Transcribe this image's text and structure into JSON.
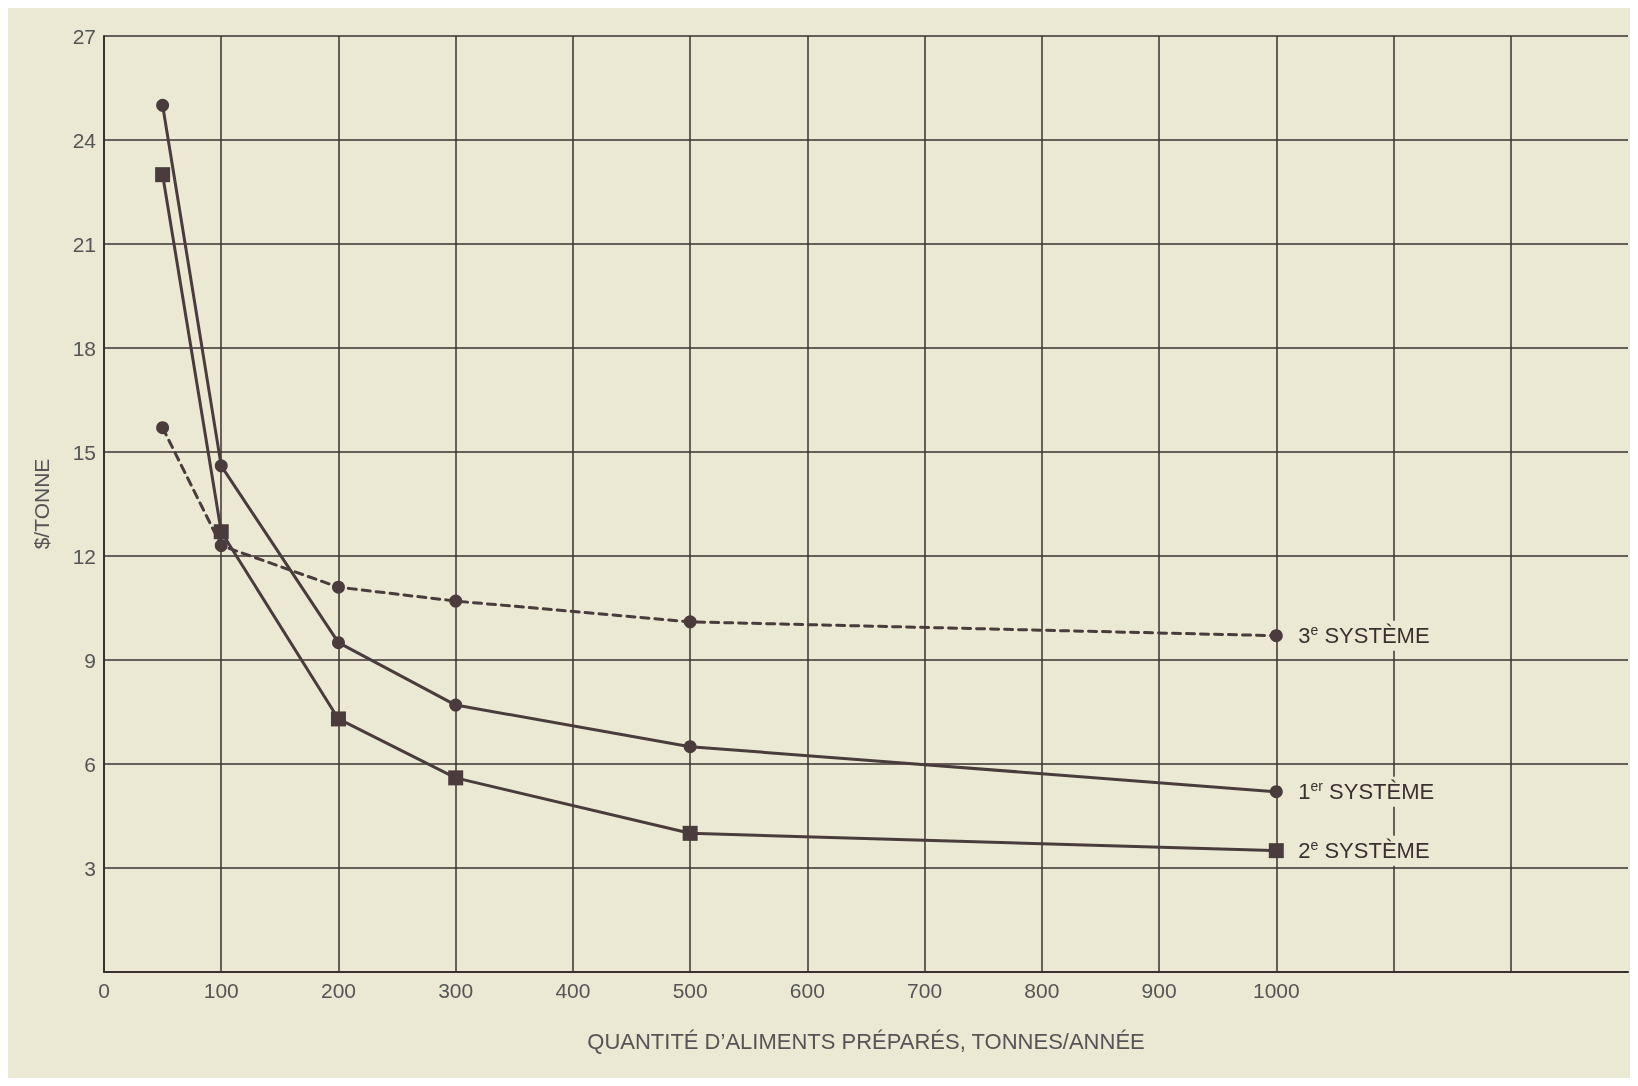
{
  "chart_data": {
    "type": "line",
    "xlabel": "QUANTITÉ D’ALIMENTS PRÉPARÉS, TONNES/ANNÉE",
    "ylabel": "$/TONNE",
    "xlim": [
      0,
      1300
    ],
    "xticks": [
      0,
      100,
      200,
      300,
      400,
      500,
      600,
      700,
      800,
      900,
      1000,
      {
        "value": 1100,
        "label": null
      },
      {
        "value": 1200,
        "label": null
      }
    ],
    "ylim": [
      0,
      27
    ],
    "yticks": [
      {
        "value": 0,
        "label": null
      },
      3,
      6,
      9,
      12,
      15,
      18,
      21,
      24,
      27
    ],
    "grid": true,
    "series": [
      {
        "name": "1$^{er}$ SYSTÈME",
        "color": "#4a3c3c",
        "marker": "circle",
        "line_style": "solid",
        "x": [
          50,
          100,
          200,
          300,
          500,
          1000
        ],
        "values": [
          25.0,
          14.6,
          9.5,
          7.7,
          6.5,
          5.2
        ]
      },
      {
        "name": "2$^{e}$ SYSTÈME",
        "color": "#4a3c3c",
        "marker": "square",
        "line_style": "solid",
        "x": [
          50,
          100,
          200,
          300,
          500,
          1000
        ],
        "values": [
          23.0,
          12.7,
          7.3,
          5.6,
          4.0,
          3.5
        ]
      },
      {
        "name": "3$^{e}$ SYSTÈME",
        "color": "#4a3c3c",
        "marker": "circle",
        "line_style": "dashed",
        "x": [
          50,
          100,
          200,
          300,
          500,
          1000
        ],
        "values": [
          15.7,
          12.3,
          11.1,
          10.7,
          10.1,
          9.7
        ]
      }
    ]
  }
}
